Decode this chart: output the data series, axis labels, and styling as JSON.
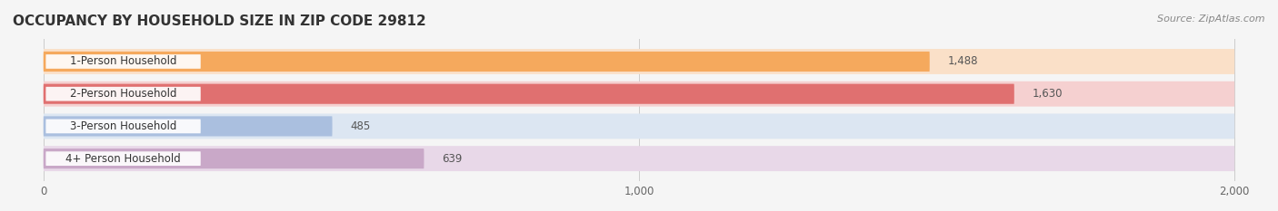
{
  "title": "OCCUPANCY BY HOUSEHOLD SIZE IN ZIP CODE 29812",
  "source": "Source: ZipAtlas.com",
  "categories": [
    "1-Person Household",
    "2-Person Household",
    "3-Person Household",
    "4+ Person Household"
  ],
  "values": [
    1488,
    1630,
    485,
    639
  ],
  "bar_colors": [
    "#F5A95D",
    "#E07070",
    "#AABFDF",
    "#C9A8C8"
  ],
  "bar_bg_colors": [
    "#FAE0C8",
    "#F5D0D0",
    "#DCE6F2",
    "#E8D8E8"
  ],
  "xlim": [
    0,
    2000
  ],
  "xticks": [
    0,
    1000,
    2000
  ],
  "value_label_color": "#666666",
  "title_color": "#333333",
  "source_color": "#888888",
  "background_color": "#f5f5f5",
  "bar_background": "#efefef"
}
